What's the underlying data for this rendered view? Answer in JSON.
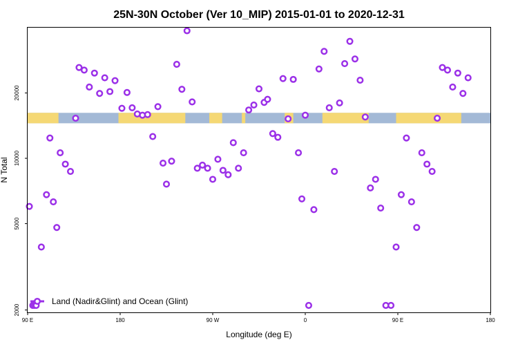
{
  "chart_data": {
    "type": "scatter",
    "title": "25N-30N October (Ver 10_MIP)   2015-01-01 to 2020-12-31",
    "xlabel": "Longitude (deg E)",
    "ylabel": "N Total",
    "x_scale": "linear",
    "y_scale": "log",
    "xlim": [
      -90,
      180
    ],
    "ylim": [
      1950,
      40000
    ],
    "x_ticks": [
      {
        "value": -90,
        "label": "90 E"
      },
      {
        "value": -36,
        "label": "180"
      },
      {
        "value": 18,
        "label": "90 W"
      },
      {
        "value": 72,
        "label": "0"
      },
      {
        "value": 126,
        "label": "90 E"
      },
      {
        "value": 180,
        "label": "180"
      }
    ],
    "y_ticks": [
      {
        "value": 2000,
        "label": "2000"
      },
      {
        "value": 5000,
        "label": "5000"
      },
      {
        "value": 10000,
        "label": "10000"
      },
      {
        "value": 20000,
        "label": "20000"
      }
    ],
    "grid": false,
    "legend": {
      "position": "bottom-left",
      "entries": [
        "Land (Nadir&Glint) and Ocean (Glint)"
      ]
    },
    "colors": {
      "marker": "#9b30e8",
      "land": "#f5d874",
      "ocean": "#a3b9d6",
      "frame": "#000000"
    },
    "land_ocean_strip": {
      "y_range": [
        14500,
        16200
      ],
      "land_segments": [
        [
          -90,
          -72
        ],
        [
          -37,
          2
        ],
        [
          16,
          23.5
        ],
        [
          35,
          37
        ],
        [
          60,
          65
        ],
        [
          82,
          109
        ],
        [
          125,
          163
        ]
      ]
    },
    "series": [
      {
        "name": "Land (Nadir&Glint) and Ocean (Glint)",
        "points": [
          [
            -89,
            6000
          ],
          [
            -87,
            2100
          ],
          [
            -86,
            2100
          ],
          [
            -85,
            2100
          ],
          [
            -82,
            3900
          ],
          [
            -79,
            6800
          ],
          [
            -77,
            12400
          ],
          [
            -75,
            6300
          ],
          [
            -73,
            4800
          ],
          [
            -71,
            10600
          ],
          [
            -68,
            9400
          ],
          [
            -65,
            8700
          ],
          [
            -62,
            15300
          ],
          [
            -60,
            26200
          ],
          [
            -57,
            25500
          ],
          [
            -54,
            21300
          ],
          [
            -51,
            24700
          ],
          [
            -48,
            19900
          ],
          [
            -45,
            23500
          ],
          [
            -42,
            20300
          ],
          [
            -39,
            22800
          ],
          [
            -35,
            17000
          ],
          [
            -32,
            20100
          ],
          [
            -29,
            17100
          ],
          [
            -26,
            16000
          ],
          [
            -23,
            15800
          ],
          [
            -20,
            15900
          ],
          [
            -17,
            12600
          ],
          [
            -14,
            17300
          ],
          [
            -11,
            9500
          ],
          [
            -9,
            7600
          ],
          [
            -6,
            9700
          ],
          [
            -3,
            27100
          ],
          [
            0,
            20800
          ],
          [
            3,
            38700
          ],
          [
            6,
            18200
          ],
          [
            9,
            9000
          ],
          [
            12,
            9300
          ],
          [
            15,
            9000
          ],
          [
            18,
            8000
          ],
          [
            21,
            9900
          ],
          [
            24,
            8800
          ],
          [
            27,
            8400
          ],
          [
            30,
            11800
          ],
          [
            33,
            9000
          ],
          [
            36,
            10600
          ],
          [
            39,
            16700
          ],
          [
            42,
            17600
          ],
          [
            45,
            20900
          ],
          [
            48,
            18100
          ],
          [
            50,
            18700
          ],
          [
            53,
            13000
          ],
          [
            56,
            12500
          ],
          [
            59,
            23300
          ],
          [
            62,
            15200
          ],
          [
            65,
            23100
          ],
          [
            68,
            10600
          ],
          [
            70,
            6500
          ],
          [
            72,
            15800
          ],
          [
            74,
            2100
          ],
          [
            77,
            5800
          ],
          [
            80,
            25800
          ],
          [
            83,
            31100
          ],
          [
            86,
            17100
          ],
          [
            89,
            8700
          ],
          [
            92,
            18000
          ],
          [
            95,
            27300
          ],
          [
            98,
            34600
          ],
          [
            101,
            28700
          ],
          [
            104,
            22900
          ],
          [
            107,
            15500
          ],
          [
            110,
            7300
          ],
          [
            113,
            8000
          ],
          [
            116,
            5900
          ],
          [
            119,
            2100
          ],
          [
            122,
            2100
          ],
          [
            125,
            3900
          ],
          [
            128,
            6800
          ],
          [
            131,
            12400
          ],
          [
            134,
            6300
          ],
          [
            137,
            4800
          ],
          [
            140,
            10600
          ],
          [
            143,
            9400
          ],
          [
            146,
            8700
          ],
          [
            149,
            15300
          ],
          [
            152,
            26200
          ],
          [
            155,
            25500
          ],
          [
            158,
            21300
          ],
          [
            161,
            24700
          ],
          [
            164,
            19900
          ],
          [
            167,
            23500
          ]
        ]
      }
    ]
  }
}
